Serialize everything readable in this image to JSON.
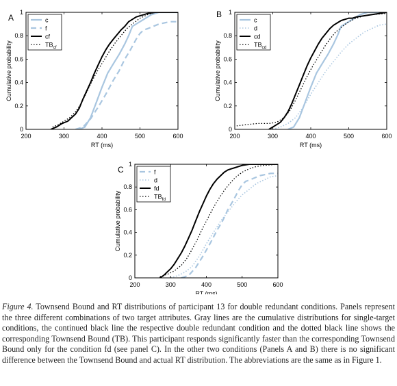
{
  "colors": {
    "grayLine": "#a9c6e0",
    "black": "#000000"
  },
  "caption": {
    "lead": "Figure 4.",
    "text": " Townsend Bound and RT distributions of participant 13 for double redundant conditions. Panels represent the three different combinations of two target attributes. Gray lines are the cumulative distributions for single-target conditions, the continued black line the respective double redundant condition and the dotted black line shows the corresponding Townsend Bound (TB). This participant responds significantly faster than the corresponding Townsend Bound only for the condition fd (see panel C). In the other two conditions (Panels A and B) there is no significant difference between the Townsend Bound and actual RT distribution. The abbreviations are the same as in Figure 1."
  },
  "chart_data": [
    {
      "type": "line",
      "panel_label": "A",
      "xlabel": "RT (ms)",
      "ylabel": "Cumulative probability",
      "xlim": [
        200,
        600
      ],
      "ylim": [
        0,
        1
      ],
      "xticks": [
        200,
        300,
        400,
        500,
        600
      ],
      "yticks": [
        0,
        0.2,
        0.4,
        0.6,
        0.8,
        1
      ],
      "legend_position": "top-left",
      "series": [
        {
          "name": "c",
          "style": "gray-solid",
          "x": [
            340,
            355,
            370,
            385,
            400,
            415,
            430,
            445,
            460,
            470,
            480,
            490,
            500,
            515,
            530,
            550,
            600
          ],
          "y": [
            0,
            0.02,
            0.1,
            0.23,
            0.36,
            0.48,
            0.56,
            0.64,
            0.73,
            0.8,
            0.88,
            0.9,
            0.92,
            0.95,
            0.98,
            1.0,
            1.0
          ]
        },
        {
          "name": "f",
          "style": "gray-dashed",
          "x": [
            330,
            350,
            370,
            390,
            410,
            430,
            445,
            460,
            475,
            490,
            500,
            510,
            520,
            535,
            550,
            580,
            600
          ],
          "y": [
            0,
            0.02,
            0.09,
            0.19,
            0.3,
            0.42,
            0.5,
            0.6,
            0.68,
            0.77,
            0.82,
            0.85,
            0.86,
            0.88,
            0.9,
            0.92,
            0.92
          ]
        },
        {
          "name": "cf",
          "label_sub": "",
          "style": "black-solid",
          "x": [
            265,
            280,
            295,
            310,
            320,
            330,
            340,
            350,
            360,
            370,
            380,
            390,
            400,
            410,
            420,
            430,
            440,
            450,
            460,
            470,
            480,
            490,
            500,
            510,
            520,
            540,
            560,
            580,
            600
          ],
          "y": [
            0,
            0.02,
            0.05,
            0.07,
            0.1,
            0.13,
            0.18,
            0.26,
            0.33,
            0.4,
            0.48,
            0.55,
            0.62,
            0.68,
            0.73,
            0.77,
            0.81,
            0.85,
            0.88,
            0.92,
            0.94,
            0.96,
            0.97,
            0.98,
            0.99,
            1.0,
            1.0,
            1.0,
            1.0
          ]
        },
        {
          "name": "TB",
          "label_sub": "cf",
          "style": "black-dotted",
          "x": [
            270,
            285,
            300,
            315,
            330,
            345,
            360,
            375,
            390,
            405,
            420,
            435,
            450,
            465,
            480,
            500,
            520,
            540,
            600
          ],
          "y": [
            0.02,
            0.04,
            0.07,
            0.1,
            0.15,
            0.22,
            0.32,
            0.42,
            0.51,
            0.59,
            0.67,
            0.74,
            0.8,
            0.86,
            0.9,
            0.95,
            0.98,
            1.0,
            1.0
          ]
        }
      ]
    },
    {
      "type": "line",
      "panel_label": "B",
      "xlabel": "RT (ms)",
      "ylabel": "Cumulative probability",
      "xlim": [
        200,
        600
      ],
      "ylim": [
        0,
        1
      ],
      "xticks": [
        200,
        300,
        400,
        500,
        600
      ],
      "yticks": [
        0,
        0.2,
        0.4,
        0.6,
        0.8,
        1
      ],
      "legend_position": "top-left",
      "series": [
        {
          "name": "c",
          "style": "gray-solid",
          "x": [
            340,
            355,
            370,
            385,
            400,
            415,
            430,
            445,
            460,
            470,
            480,
            490,
            500,
            515,
            530,
            550,
            600
          ],
          "y": [
            0,
            0.02,
            0.1,
            0.23,
            0.36,
            0.48,
            0.56,
            0.64,
            0.73,
            0.8,
            0.88,
            0.9,
            0.92,
            0.95,
            0.98,
            1.0,
            1.0
          ]
        },
        {
          "name": "d",
          "style": "gray-dotted",
          "x": [
            300,
            320,
            340,
            360,
            380,
            400,
            420,
            440,
            460,
            480,
            500,
            520,
            540,
            560,
            580,
            600
          ],
          "y": [
            0,
            0.02,
            0.05,
            0.1,
            0.19,
            0.3,
            0.4,
            0.5,
            0.58,
            0.66,
            0.73,
            0.78,
            0.83,
            0.86,
            0.89,
            0.9
          ]
        },
        {
          "name": "cd",
          "style": "black-solid",
          "x": [
            290,
            300,
            310,
            320,
            330,
            340,
            350,
            360,
            370,
            380,
            390,
            400,
            410,
            420,
            430,
            440,
            450,
            460,
            470,
            480,
            490,
            500,
            510,
            520,
            540,
            560,
            580,
            600
          ],
          "y": [
            0,
            0.02,
            0.04,
            0.06,
            0.1,
            0.15,
            0.22,
            0.3,
            0.38,
            0.46,
            0.54,
            0.61,
            0.67,
            0.73,
            0.78,
            0.82,
            0.86,
            0.89,
            0.91,
            0.93,
            0.94,
            0.95,
            0.95,
            0.96,
            0.97,
            0.98,
            0.99,
            1.0
          ]
        },
        {
          "name": "TB",
          "label_sub": "cd",
          "style": "black-dotted",
          "x": [
            205,
            230,
            260,
            290,
            310,
            330,
            345,
            360,
            375,
            390,
            405,
            420,
            435,
            450,
            465,
            480,
            500,
            520,
            540,
            560,
            600
          ],
          "y": [
            0.03,
            0.04,
            0.05,
            0.05,
            0.06,
            0.1,
            0.16,
            0.25,
            0.35,
            0.45,
            0.54,
            0.62,
            0.7,
            0.77,
            0.83,
            0.87,
            0.92,
            0.95,
            0.97,
            0.98,
            0.99
          ]
        }
      ]
    },
    {
      "type": "line",
      "panel_label": "C",
      "xlabel": "RT (ms)",
      "ylabel": "Cumulative probability",
      "xlim": [
        200,
        600
      ],
      "ylim": [
        0,
        1
      ],
      "xticks": [
        200,
        300,
        400,
        500,
        600
      ],
      "yticks": [
        0,
        0.2,
        0.4,
        0.6,
        0.8,
        1
      ],
      "legend_position": "top-left",
      "series": [
        {
          "name": "f",
          "style": "gray-dashed",
          "x": [
            330,
            350,
            370,
            390,
            410,
            430,
            445,
            460,
            475,
            490,
            500,
            510,
            520,
            535,
            550,
            580,
            600
          ],
          "y": [
            0,
            0.02,
            0.09,
            0.19,
            0.3,
            0.42,
            0.5,
            0.6,
            0.68,
            0.77,
            0.82,
            0.85,
            0.86,
            0.88,
            0.9,
            0.92,
            0.92
          ]
        },
        {
          "name": "d",
          "style": "gray-dotted",
          "x": [
            300,
            320,
            340,
            360,
            380,
            400,
            420,
            440,
            460,
            480,
            500,
            520,
            540,
            560,
            580,
            600
          ],
          "y": [
            0,
            0.02,
            0.05,
            0.1,
            0.19,
            0.3,
            0.4,
            0.5,
            0.58,
            0.66,
            0.73,
            0.78,
            0.83,
            0.86,
            0.89,
            0.9
          ]
        },
        {
          "name": "fd",
          "style": "black-solid",
          "x": [
            270,
            280,
            290,
            300,
            310,
            320,
            330,
            340,
            350,
            360,
            370,
            380,
            390,
            400,
            410,
            420,
            430,
            440,
            450,
            460,
            470,
            480,
            490,
            500,
            520,
            540,
            560,
            600
          ],
          "y": [
            0,
            0.02,
            0.05,
            0.08,
            0.12,
            0.17,
            0.22,
            0.28,
            0.35,
            0.42,
            0.5,
            0.58,
            0.65,
            0.72,
            0.78,
            0.83,
            0.87,
            0.9,
            0.93,
            0.95,
            0.96,
            0.97,
            0.98,
            0.99,
            1.0,
            1.0,
            1.0,
            1.0
          ]
        },
        {
          "name": "TB",
          "label_sub": "fd",
          "style": "black-dotted",
          "x": [
            270,
            290,
            310,
            330,
            345,
            360,
            375,
            390,
            405,
            420,
            435,
            450,
            465,
            480,
            500,
            520,
            540,
            560,
            600
          ],
          "y": [
            0.01,
            0.03,
            0.06,
            0.11,
            0.17,
            0.25,
            0.34,
            0.44,
            0.53,
            0.62,
            0.7,
            0.77,
            0.83,
            0.88,
            0.93,
            0.96,
            0.98,
            0.99,
            1.0
          ]
        }
      ]
    }
  ]
}
